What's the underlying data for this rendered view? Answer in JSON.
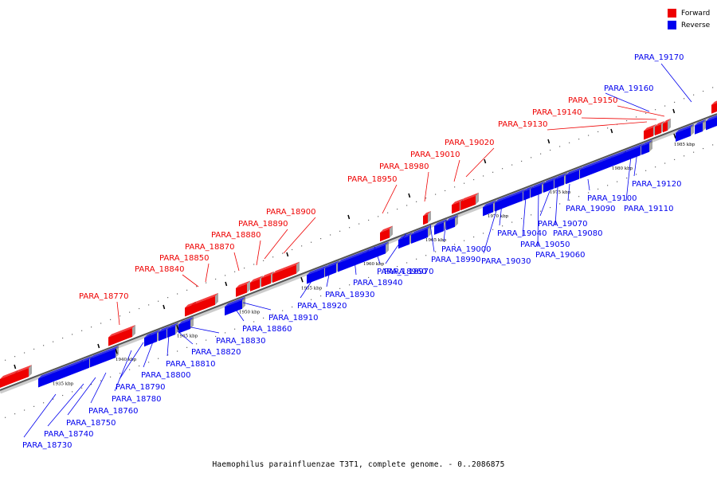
{
  "caption": "Haemophilus parainfluenzae T3T1, complete genome. - 0..2086875",
  "legend": [
    {
      "label": "Forward",
      "color": "#ee0000"
    },
    {
      "label": "Reverse",
      "color": "#0000ee"
    }
  ],
  "colors": {
    "forward": "#ee0000",
    "reverse": "#0000ee",
    "backbone": "#888888"
  },
  "kbp_ticks": [
    "1935 kbp",
    "1940 kbp",
    "1945 kbp",
    "1950 kbp",
    "1955 kbp",
    "1960 kbp",
    "1965 kbp",
    "1970 kbp",
    "1975 kbp",
    "1980 kbp",
    "1985 kbp"
  ],
  "forward_labels": [
    "PARA_18770",
    "PARA_18840",
    "PARA_18850",
    "PARA_18870",
    "PARA_18880",
    "PARA_18890",
    "PARA_18900",
    "PARA_18950",
    "PARA_18980",
    "PARA_19010",
    "PARA_19020",
    "PARA_19130",
    "PARA_19140",
    "PARA_19150"
  ],
  "reverse_labels": [
    "PARA_18730",
    "PARA_18740",
    "PARA_18750",
    "PARA_18760",
    "PARA_18780",
    "PARA_18790",
    "PARA_18800",
    "PARA_18810",
    "PARA_18820",
    "PARA_18830",
    "PARA_18860",
    "PARA_18910",
    "PARA_18920",
    "PARA_18930",
    "PARA_18940",
    "PARA_18960",
    "PARA_18970",
    "PARA_18990",
    "PARA_19000",
    "PARA_19030",
    "PARA_19040",
    "PARA_19050",
    "PARA_19060",
    "PARA_19070",
    "PARA_19080",
    "PARA_19090",
    "PARA_19100",
    "PARA_19110",
    "PARA_19120",
    "PARA_19160",
    "PARA_19170"
  ]
}
